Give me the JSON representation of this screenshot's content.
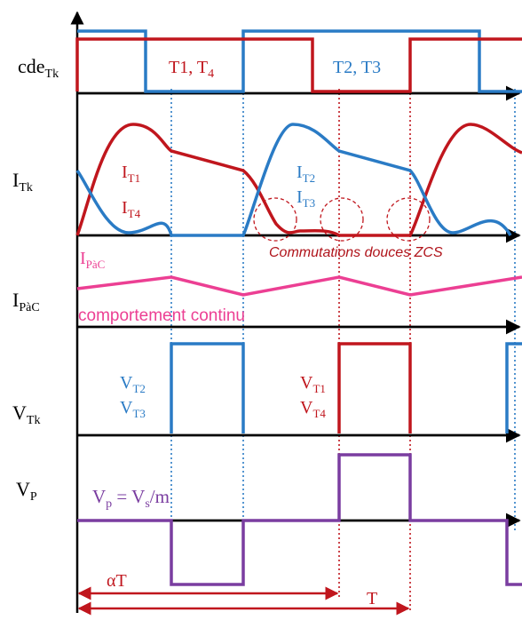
{
  "row_labels": {
    "cde": {
      "main": "cde",
      "sub": "Tk"
    },
    "itk": {
      "main": "I",
      "sub": "Tk"
    },
    "ipac": {
      "main": "I",
      "sub": "PàC"
    },
    "vtk": {
      "main": "V",
      "sub": "Tk"
    },
    "vp": {
      "main": "V",
      "sub": "P"
    }
  },
  "cde_labels": {
    "red_main": "T1, T",
    "red_sub": "4",
    "blue": "T2, T3"
  },
  "current_labels": {
    "it1": {
      "main": "I",
      "sub": "T1"
    },
    "it4": {
      "main": "I",
      "sub": "T4"
    },
    "it2": {
      "main": "I",
      "sub": "T2"
    },
    "it3": {
      "main": "I",
      "sub": "T3"
    },
    "zcs_note": "Commutations douces ZCS"
  },
  "ipac_labels": {
    "main": "I",
    "sub": "PàC",
    "note": "comportement continu"
  },
  "vtk_labels": {
    "vt2": {
      "main": "V",
      "sub": "T2"
    },
    "vt3": {
      "main": "V",
      "sub": "T3"
    },
    "vt1": {
      "main": "V",
      "sub": "T1"
    },
    "vt4": {
      "main": "V",
      "sub": "T4"
    }
  },
  "vp_label": {
    "v": "V",
    "p_sub": "p",
    "eq": " = V",
    "s_sub": "s",
    "tail": "/m"
  },
  "time_labels": {
    "alpha_t": "αT",
    "period": "T"
  },
  "colors": {
    "red": "#c0161d",
    "blue": "#2a7bc5",
    "pink": "#ec3f93",
    "purple": "#7a3da0",
    "black": "#000000"
  }
}
